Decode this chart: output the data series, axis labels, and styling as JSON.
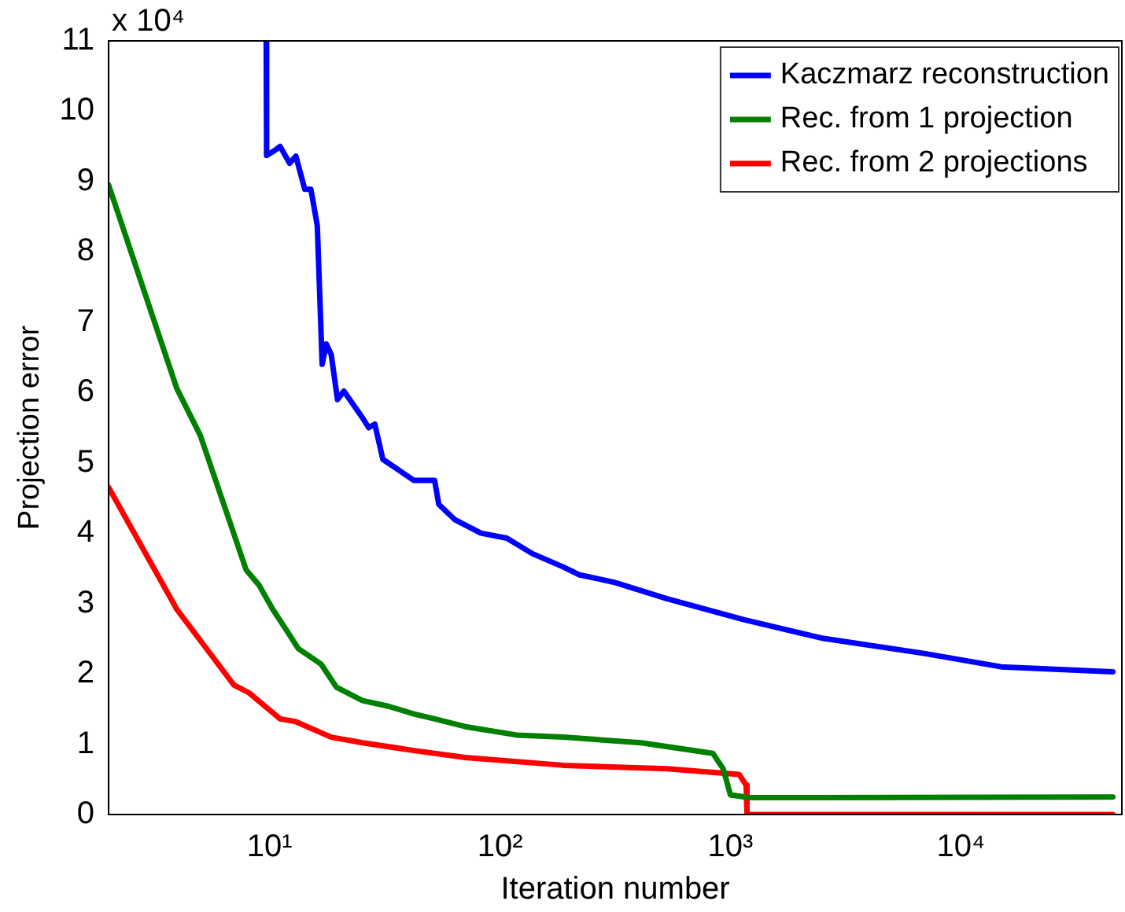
{
  "chart_data": {
    "type": "line",
    "xlabel": "Iteration number",
    "ylabel": "Projection error",
    "log": "x",
    "grid": false,
    "legend": "top right",
    "marker": "none",
    "line_style": "solid",
    "xlim": [
      2,
      50000
    ],
    "xticks": [
      {
        "value": 10,
        "label": "10¹"
      },
      {
        "value": 100,
        "label": "10²"
      },
      {
        "value": 1000,
        "label": "10³"
      },
      {
        "value": 10000,
        "label": "10⁴"
      }
    ],
    "ylim": [
      0,
      11
    ],
    "yticks": [
      0,
      1,
      2,
      3,
      4,
      5,
      6,
      7,
      8,
      9,
      10,
      11
    ],
    "annotations": [
      "x 10⁴"
    ],
    "series": [
      {
        "name": "Kaczmarz reconstruction",
        "color": "#0000ff",
        "x": [
          9.66,
          9.7,
          10.5,
          11.1,
          12.2,
          13.0,
          14.2,
          15.1,
          16.1,
          16.9,
          17.6,
          18.5,
          19.7,
          21.0,
          25.3,
          26.9,
          28.6,
          31,
          42.3,
          52,
          54.2,
          63.8,
          82.6,
          107,
          138,
          188,
          220,
          315,
          528,
          1143,
          2475,
          6930,
          15000,
          45700
        ],
        "values": [
          11,
          9.37,
          9.44,
          9.5,
          9.26,
          9.36,
          8.89,
          8.89,
          8.37,
          6.4,
          6.69,
          6.54,
          5.9,
          6.02,
          5.64,
          5.5,
          5.55,
          5.05,
          4.75,
          4.75,
          4.41,
          4.19,
          4.0,
          3.93,
          3.71,
          3.52,
          3.41,
          3.3,
          3.07,
          2.77,
          2.51,
          2.29,
          2.1,
          2.03
        ]
      },
      {
        "name": "Rec. from 1 projection",
        "color": "#008000",
        "x": [
          2,
          3.95,
          5.0,
          7.9,
          9.0,
          10.3,
          12.0,
          13.3,
          16.7,
          19.5,
          25.3,
          32.7,
          42.3,
          52,
          70.6,
          118,
          188,
          410,
          839,
          930,
          1000,
          1200,
          2475,
          45700
        ],
        "values": [
          8.95,
          6.06,
          5.39,
          3.48,
          3.26,
          2.92,
          2.59,
          2.36,
          2.14,
          1.81,
          1.62,
          1.54,
          1.43,
          1.36,
          1.25,
          1.13,
          1.1,
          1.02,
          0.87,
          0.65,
          0.28,
          0.24,
          0.24,
          0.25
        ]
      },
      {
        "name": "Rec. from 2 projections",
        "color": "#ff0000",
        "x": [
          2,
          3.95,
          7.0,
          8.14,
          11.1,
          13.0,
          18.5,
          25.3,
          42.3,
          70.6,
          188,
          528,
          1090,
          1170,
          1180,
          45700
        ],
        "values": [
          4.65,
          2.92,
          1.84,
          1.73,
          1.36,
          1.32,
          1.1,
          1.02,
          0.91,
          0.81,
          0.7,
          0.65,
          0.57,
          0.42,
          0,
          0
        ]
      }
    ]
  }
}
